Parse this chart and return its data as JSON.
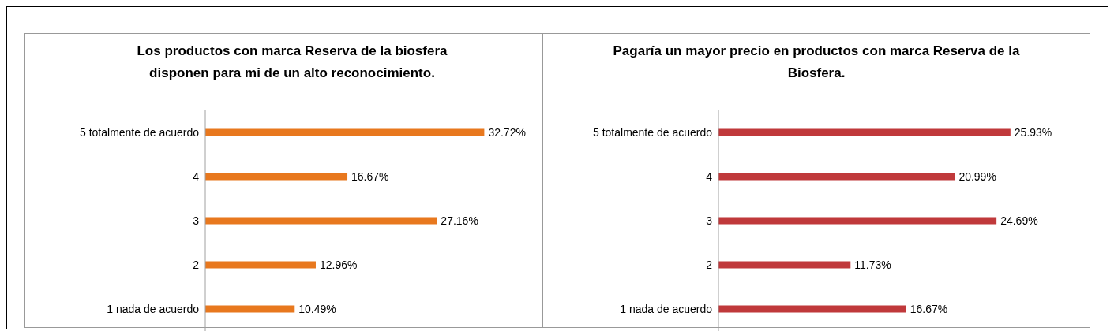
{
  "chart_data": [
    {
      "type": "bar",
      "orientation": "horizontal",
      "title": "Los productos con marca  Reserva de la biosfera disponen para mi de un alto reconocimiento.",
      "categories": [
        "5 totalmente de acuerdo",
        "4",
        "3",
        "2",
        "1 nada de acuerdo"
      ],
      "values": [
        32.72,
        16.67,
        27.16,
        12.96,
        10.49
      ],
      "value_labels": [
        "32.72%",
        "16.67%",
        "27.16%",
        "12.96%",
        "10.49%"
      ],
      "color": "#e8781e",
      "grid": false,
      "legend": false
    },
    {
      "type": "bar",
      "orientation": "horizontal",
      "title": "Pagaría un mayor precio en productos con marca Reserva de la Biosfera.",
      "categories": [
        "5 totalmente de acuerdo",
        "4",
        "3",
        "2",
        "1 nada de acuerdo"
      ],
      "values": [
        25.93,
        20.99,
        24.69,
        11.73,
        16.67
      ],
      "value_labels": [
        "25.93%",
        "20.99%",
        "24.69%",
        "11.73%",
        "16.67%"
      ],
      "color": "#c0393b",
      "grid": false,
      "legend": false
    }
  ]
}
